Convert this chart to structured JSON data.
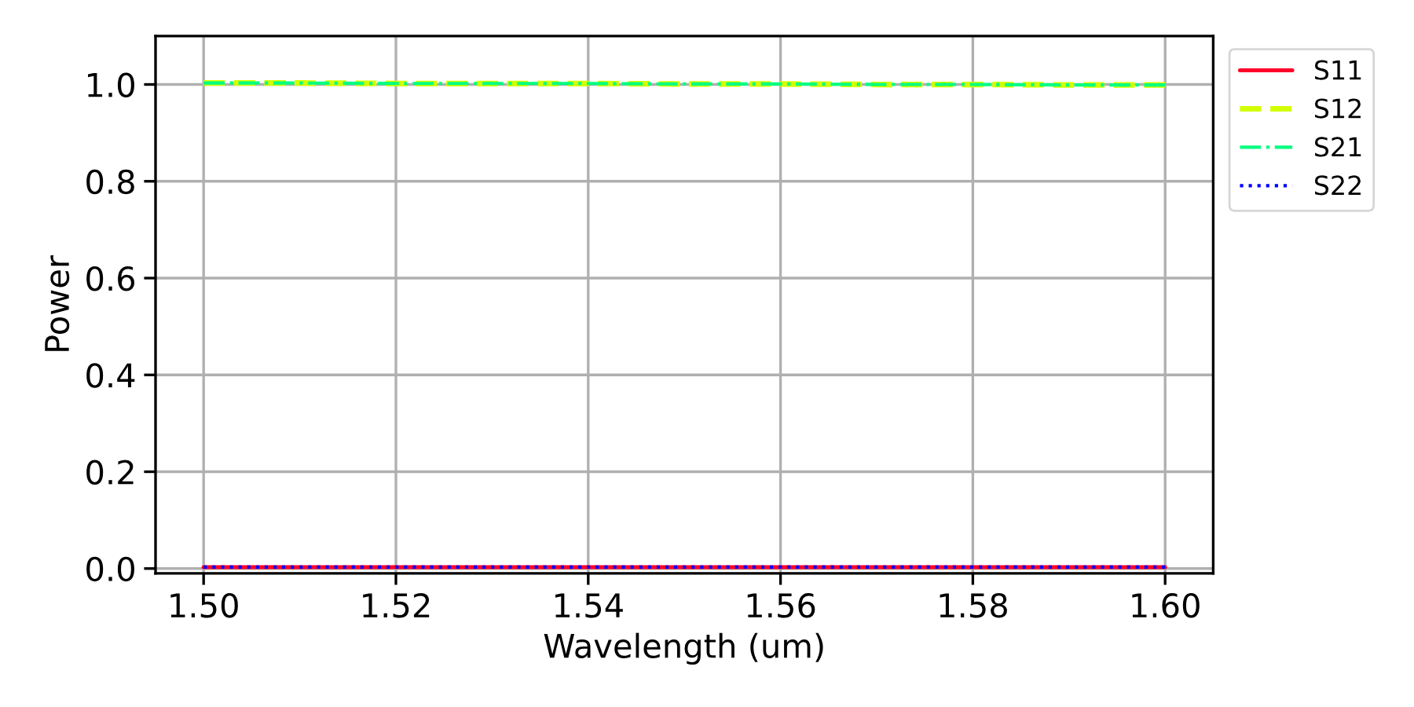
{
  "chart_data": {
    "type": "line",
    "xlabel": "Wavelength (um)",
    "ylabel": "Power",
    "x": [
      1.5,
      1.51,
      1.52,
      1.53,
      1.54,
      1.55,
      1.56,
      1.57,
      1.58,
      1.59,
      1.6
    ],
    "series": [
      {
        "name": "S11",
        "color": "#ff0029",
        "line_style": "solid",
        "values": [
          0.003,
          0.003,
          0.003,
          0.003,
          0.003,
          0.003,
          0.003,
          0.003,
          0.003,
          0.003,
          0.003
        ]
      },
      {
        "name": "S12",
        "color": "#d2ff00",
        "line_style": "dashed",
        "values": [
          1.003,
          1.003,
          1.002,
          1.002,
          1.002,
          1.001,
          1.001,
          1.0,
          1.0,
          0.999,
          0.999
        ]
      },
      {
        "name": "S21",
        "color": "#00ff7f",
        "line_style": "dashdot",
        "values": [
          1.003,
          1.003,
          1.002,
          1.002,
          1.002,
          1.001,
          1.001,
          1.0,
          1.0,
          0.999,
          0.999
        ]
      },
      {
        "name": "S22",
        "color": "#0000ff",
        "line_style": "dotted",
        "values": [
          0.003,
          0.003,
          0.003,
          0.003,
          0.003,
          0.003,
          0.003,
          0.003,
          0.003,
          0.003,
          0.003
        ]
      }
    ],
    "xlim": [
      1.495,
      1.605
    ],
    "xticks": [
      {
        "value": 1.5,
        "label": "1.50"
      },
      {
        "value": 1.52,
        "label": "1.52"
      },
      {
        "value": 1.54,
        "label": "1.54"
      },
      {
        "value": 1.56,
        "label": "1.56"
      },
      {
        "value": 1.58,
        "label": "1.58"
      },
      {
        "value": 1.6,
        "label": "1.60"
      }
    ],
    "ylim": [
      -0.01,
      1.1
    ],
    "yticks": [
      {
        "value": 0,
        "label": "0.0"
      },
      {
        "value": 0.2,
        "label": "0.2"
      },
      {
        "value": 0.4,
        "label": "0.4"
      },
      {
        "value": 0.6,
        "label": "0.6"
      },
      {
        "value": 0.8,
        "label": "0.8"
      },
      {
        "value": 1,
        "label": "1.0"
      }
    ],
    "grid": true,
    "legend": "top right",
    "marker": "none"
  }
}
